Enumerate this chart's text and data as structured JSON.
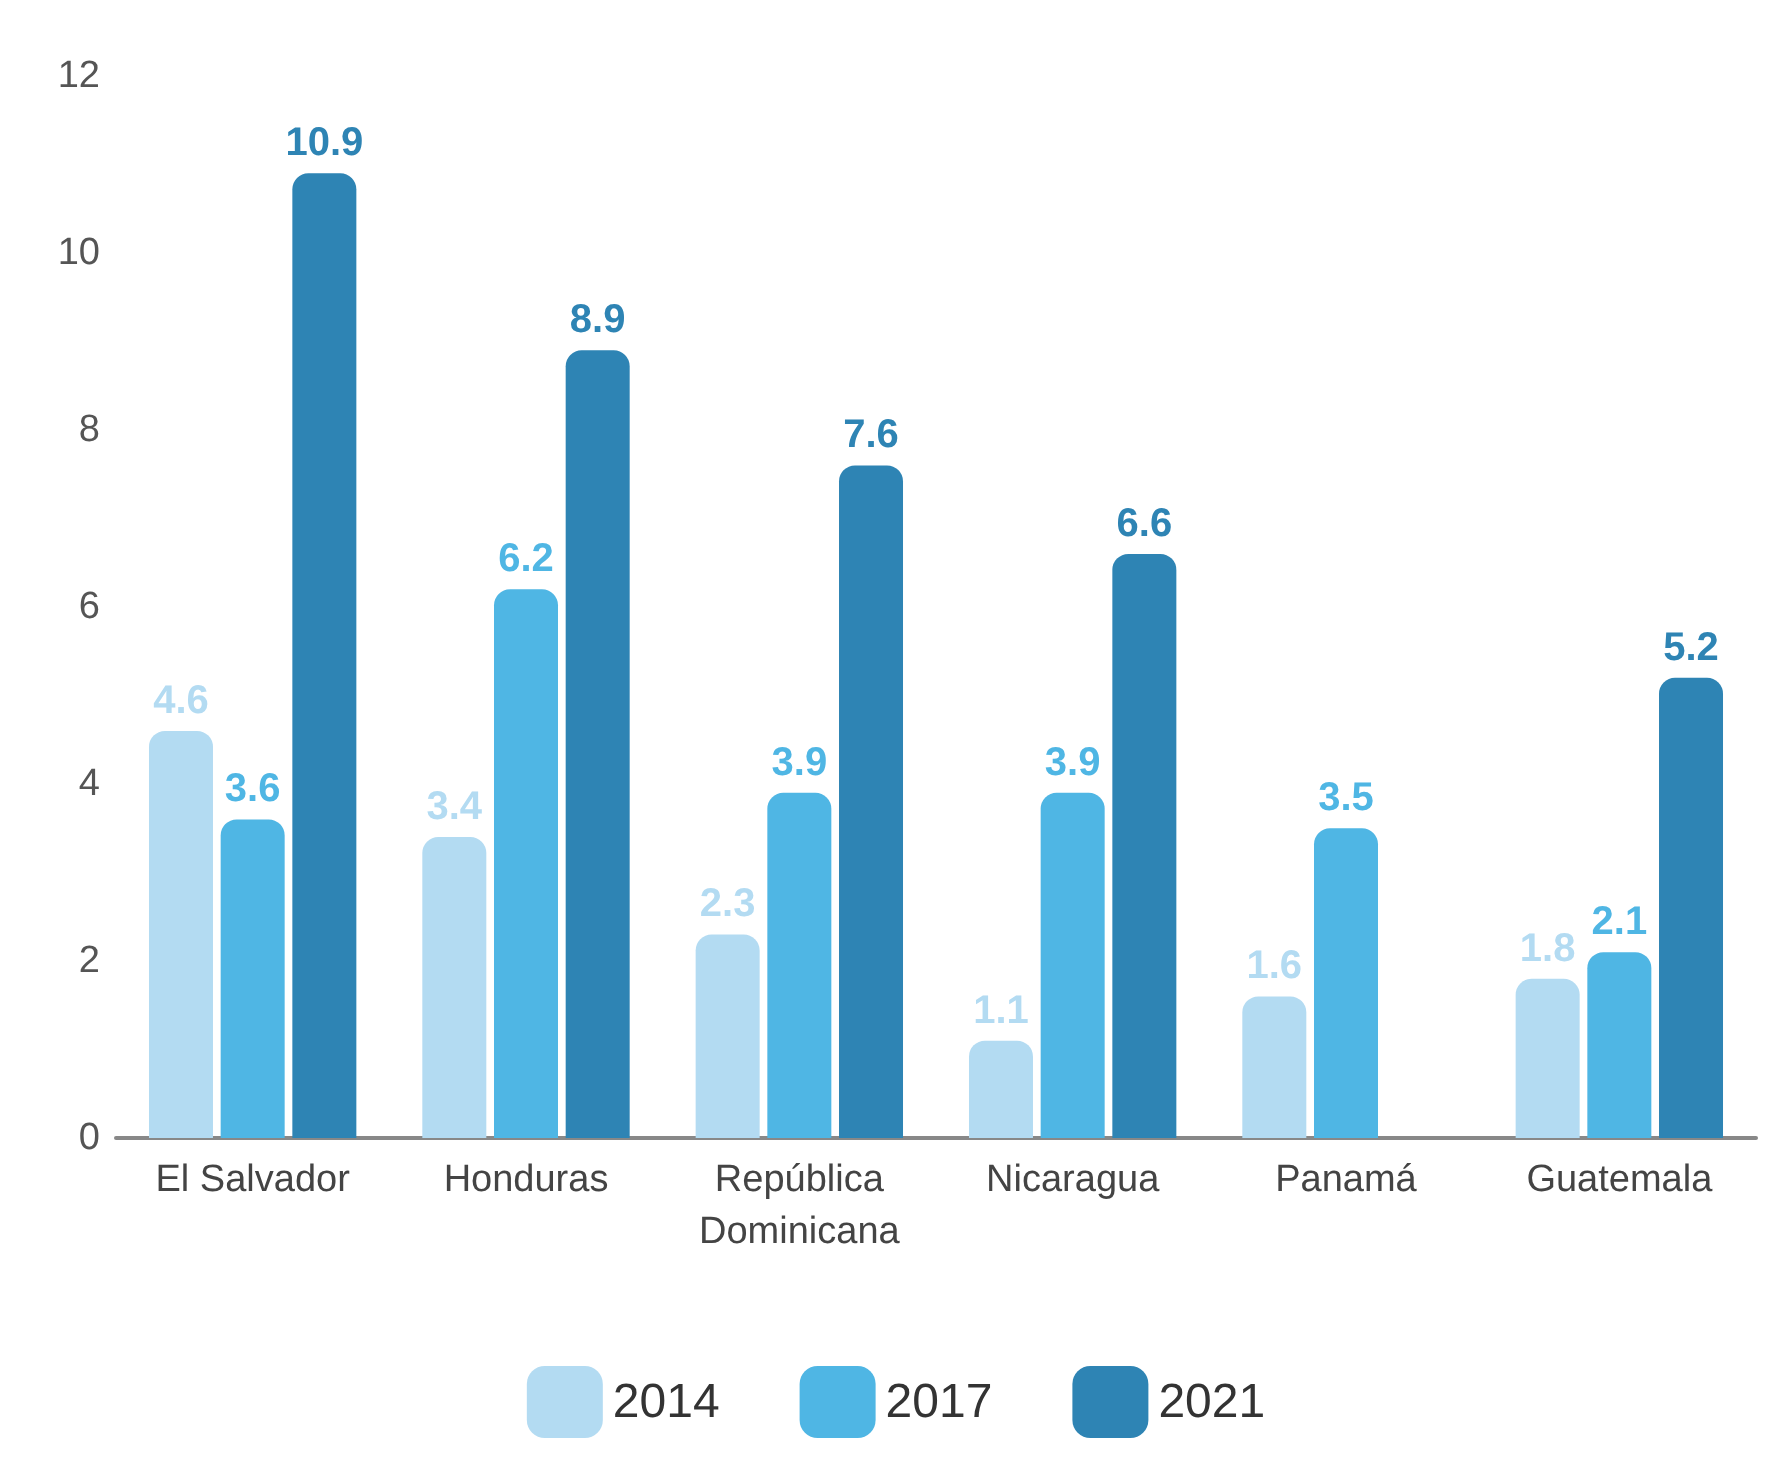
{
  "chart_data": {
    "type": "bar",
    "categories": [
      "El Salvador",
      "Honduras",
      "República\nDominicana",
      "Nicaragua",
      "Panamá",
      "Guatemala"
    ],
    "series": [
      {
        "name": "2014",
        "color": "#b3dbf2",
        "values": [
          4.6,
          3.4,
          2.3,
          1.1,
          1.6,
          1.8
        ]
      },
      {
        "name": "2017",
        "color": "#4fb6e4",
        "values": [
          3.6,
          6.2,
          3.9,
          3.9,
          3.5,
          2.1
        ]
      },
      {
        "name": "2021",
        "color": "#2e84b4",
        "values": [
          10.9,
          8.9,
          7.6,
          6.6,
          null,
          5.2
        ]
      }
    ],
    "ylim": [
      0,
      12
    ],
    "yticks": [
      0,
      2,
      4,
      6,
      8,
      10,
      12
    ],
    "grid": false,
    "legend": "bottom",
    "data_labels": true
  }
}
